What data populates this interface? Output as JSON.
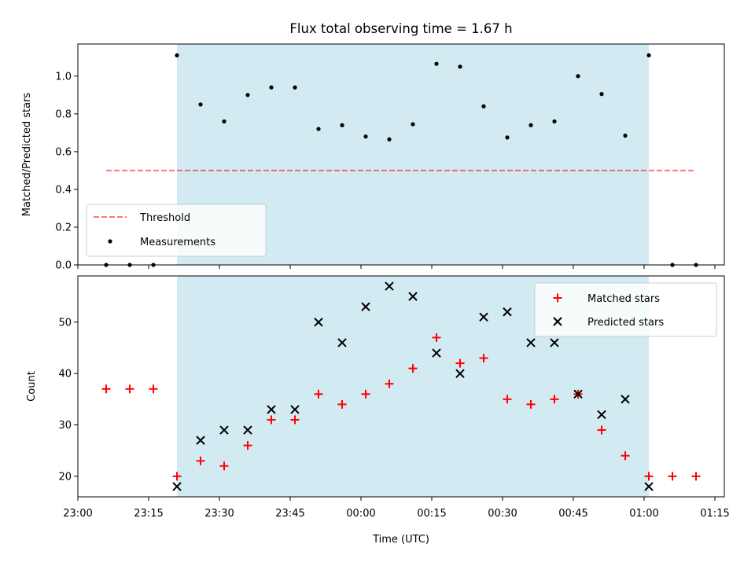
{
  "figure": {
    "title": "Flux total observing time = 1.67 h",
    "colors": {
      "shade": "#add8e6",
      "threshold": "#ff0000",
      "measurement": "#000000",
      "matched": "#ff0000",
      "predicted": "#000000"
    }
  },
  "chart_data": [
    {
      "type": "scatter",
      "ylabel": "Matched/Predicted stars",
      "ylim": [
        0,
        1.17
      ],
      "yticks": [
        "0.0",
        "0.2",
        "0.4",
        "0.6",
        "0.8",
        "1.0"
      ],
      "shaded_interval": [
        "23:21",
        "01:01"
      ],
      "legend": {
        "placement": "lower-left",
        "entries": [
          "Threshold",
          "Measurements"
        ]
      },
      "threshold": {
        "name": "Threshold",
        "value": 0.5,
        "x_range": [
          "23:06",
          "01:11"
        ]
      },
      "series": [
        {
          "name": "Measurements",
          "x": [
            "23:06",
            "23:11",
            "23:16",
            "23:21",
            "23:26",
            "23:31",
            "23:36",
            "23:41",
            "23:46",
            "23:51",
            "23:56",
            "00:01",
            "00:06",
            "00:11",
            "00:16",
            "00:21",
            "00:26",
            "00:31",
            "00:36",
            "00:41",
            "00:46",
            "00:51",
            "00:56",
            "01:01",
            "01:06",
            "01:11"
          ],
          "y": [
            0,
            0,
            0,
            1.11,
            0.85,
            0.76,
            0.9,
            0.94,
            0.94,
            0.72,
            0.74,
            0.68,
            0.665,
            0.745,
            1.065,
            1.05,
            0.84,
            0.675,
            0.74,
            0.76,
            1.0,
            0.905,
            0.685,
            1.11,
            0,
            0
          ]
        }
      ]
    },
    {
      "type": "scatter",
      "xlabel": "Time (UTC)",
      "ylabel": "Count",
      "ylim": [
        16,
        59
      ],
      "yticks": [
        "20",
        "30",
        "40",
        "50"
      ],
      "xticks": [
        "23:00",
        "23:15",
        "23:30",
        "23:45",
        "00:00",
        "00:15",
        "00:30",
        "00:45",
        "01:00",
        "01:15"
      ],
      "xlim": [
        "23:00",
        "01:17"
      ],
      "shaded_interval": [
        "23:21",
        "01:01"
      ],
      "legend": {
        "placement": "top-right",
        "entries": [
          "Matched stars",
          "Predicted stars"
        ]
      },
      "series": [
        {
          "name": "Matched stars",
          "marker": "plus",
          "x": [
            "23:06",
            "23:11",
            "23:16",
            "23:21",
            "23:26",
            "23:31",
            "23:36",
            "23:41",
            "23:46",
            "23:51",
            "23:56",
            "00:01",
            "00:06",
            "00:11",
            "00:16",
            "00:21",
            "00:26",
            "00:31",
            "00:36",
            "00:41",
            "00:46",
            "00:51",
            "00:56",
            "01:01",
            "01:06",
            "01:11"
          ],
          "y": [
            37,
            37,
            37,
            20,
            23,
            22,
            26,
            31,
            31,
            36,
            34,
            36,
            38,
            41,
            47,
            42,
            43,
            35,
            34,
            35,
            36,
            29,
            24,
            20,
            20,
            20
          ]
        },
        {
          "name": "Predicted stars",
          "marker": "x",
          "x": [
            "23:21",
            "23:26",
            "23:31",
            "23:36",
            "23:41",
            "23:46",
            "23:51",
            "23:56",
            "00:01",
            "00:06",
            "00:11",
            "00:16",
            "00:21",
            "00:26",
            "00:31",
            "00:36",
            "00:41",
            "00:46",
            "00:51",
            "00:56",
            "01:01"
          ],
          "y": [
            18,
            27,
            29,
            29,
            33,
            33,
            50,
            46,
            53,
            57,
            55,
            44,
            40,
            51,
            52,
            46,
            46,
            36,
            32,
            35,
            18
          ]
        }
      ]
    }
  ]
}
